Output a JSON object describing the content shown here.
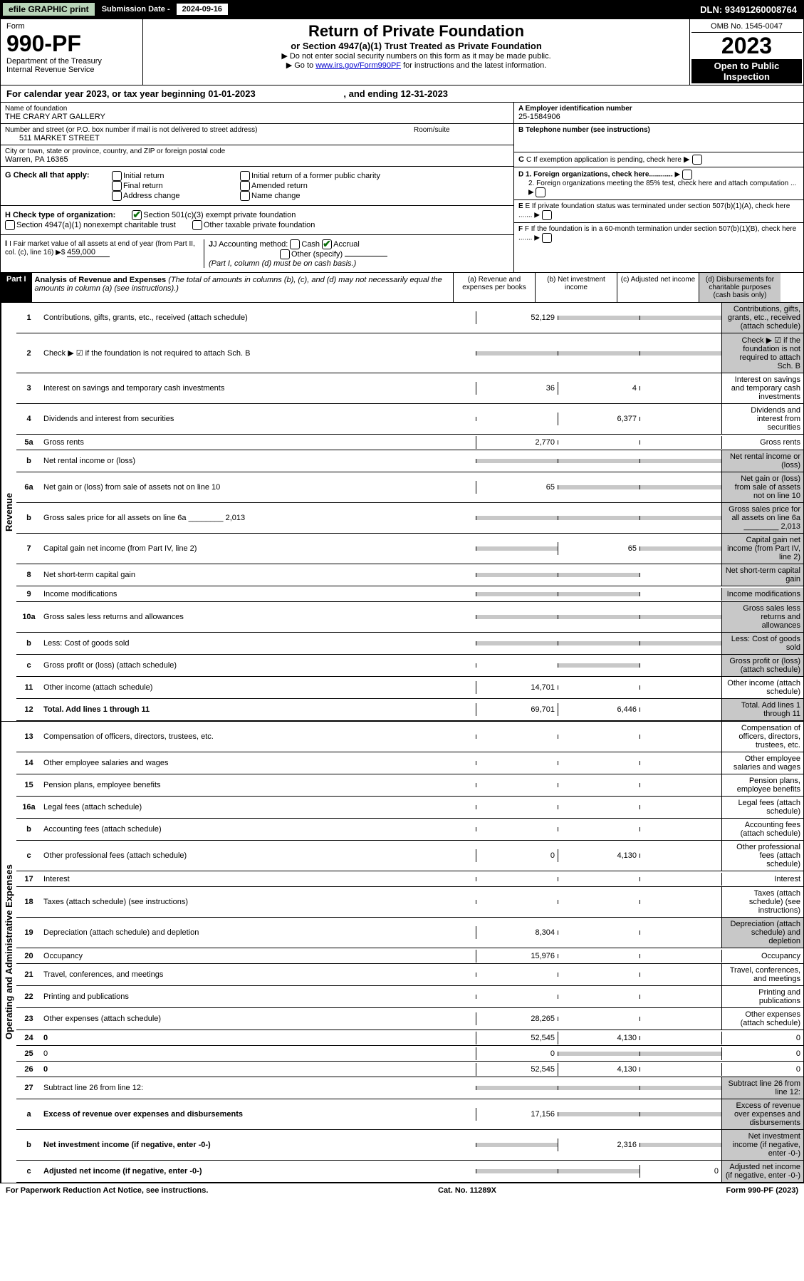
{
  "top": {
    "efile": "efile GRAPHIC print",
    "subDateLabel": "Submission Date - ",
    "subDate": "2024-09-16",
    "dln": "DLN: 93491260008764"
  },
  "header": {
    "formWord": "Form",
    "formNum": "990-PF",
    "dept1": "Department of the Treasury",
    "dept2": "Internal Revenue Service",
    "title": "Return of Private Foundation",
    "subtitle": "or Section 4947(a)(1) Trust Treated as Private Foundation",
    "instr1": "▶ Do not enter social security numbers on this form as it may be made public.",
    "instr2a": "▶ Go to ",
    "instr2link": "www.irs.gov/Form990PF",
    "instr2b": " for instructions and the latest information.",
    "omb": "OMB No. 1545-0047",
    "year": "2023",
    "openPub1": "Open to Public",
    "openPub2": "Inspection"
  },
  "calYear": {
    "a": "For calendar year 2023, or tax year beginning ",
    "b": "01-01-2023",
    "c": " , and ending ",
    "d": "12-31-2023"
  },
  "info": {
    "nameLabel": "Name of foundation",
    "name": "THE CRARY ART GALLERY",
    "addrLabel": "Number and street (or P.O. box number if mail is not delivered to street address)",
    "addr": "511 MARKET STREET",
    "roomLabel": "Room/suite",
    "cityLabel": "City or town, state or province, country, and ZIP or foreign postal code",
    "city": "Warren, PA  16365",
    "einLabel": "A Employer identification number",
    "ein": "25-1584906",
    "phoneLabel": "B Telephone number (see instructions)",
    "cLabel": "C If exemption application is pending, check here",
    "d1": "D 1. Foreign organizations, check here............",
    "d2": "2. Foreign organizations meeting the 85% test, check here and attach computation ...",
    "eLabel": "E If private foundation status was terminated under section 507(b)(1)(A), check here .......",
    "fLabel": "F If the foundation is in a 60-month termination under section 507(b)(1)(B), check here .......",
    "gLabel": "G Check all that apply:",
    "g1": "Initial return",
    "g2": "Final return",
    "g3": "Address change",
    "g4": "Initial return of a former public charity",
    "g5": "Amended return",
    "g6": "Name change",
    "hLabel": "H Check type of organization:",
    "h1": "Section 501(c)(3) exempt private foundation",
    "h2": "Section 4947(a)(1) nonexempt charitable trust",
    "h3": "Other taxable private foundation",
    "iLabel": "I Fair market value of all assets at end of year (from Part II, col. (c), line 16) ▶$ ",
    "iVal": "459,000",
    "jLabel": "J Accounting method:",
    "j1": "Cash",
    "j2": "Accrual",
    "j3": "Other (specify)",
    "jNote": "(Part I, column (d) must be on cash basis.)"
  },
  "part1": {
    "hdr": "Part I",
    "title": "Analysis of Revenue and Expenses ",
    "note": "(The total of amounts in columns (b), (c), and (d) may not necessarily equal the amounts in column (a) (see instructions).)",
    "colA": "(a) Revenue and expenses per books",
    "colB": "(b) Net investment income",
    "colC": "(c) Adjusted net income",
    "colD": "(d) Disbursements for charitable purposes (cash basis only)"
  },
  "sides": {
    "rev": "Revenue",
    "exp": "Operating and Administrative Expenses"
  },
  "rows": [
    {
      "n": "1",
      "d": "Contributions, gifts, grants, etc., received (attach schedule)",
      "a": "52,129",
      "bG": true,
      "cG": true,
      "dG": true
    },
    {
      "n": "2",
      "d": "Check ▶ ☑ if the foundation is not required to attach Sch. B",
      "aG": true,
      "bG": true,
      "cG": true,
      "dG": true,
      "noBorder": true,
      "bold": false
    },
    {
      "n": "3",
      "d": "Interest on savings and temporary cash investments",
      "a": "36",
      "b": "4"
    },
    {
      "n": "4",
      "d": "Dividends and interest from securities",
      "a": "",
      "b": "6,377"
    },
    {
      "n": "5a",
      "d": "Gross rents",
      "a": "2,770"
    },
    {
      "n": "b",
      "d": "Net rental income or (loss)",
      "aG": true,
      "bG": true,
      "cG": true,
      "dG": true,
      "inset": true
    },
    {
      "n": "6a",
      "d": "Net gain or (loss) from sale of assets not on line 10",
      "a": "65",
      "bG": true,
      "cG": true,
      "dG": true
    },
    {
      "n": "b",
      "d": "Gross sales price for all assets on line 6a ________ 2,013",
      "aG": true,
      "bG": true,
      "cG": true,
      "dG": true,
      "inset": true
    },
    {
      "n": "7",
      "d": "Capital gain net income (from Part IV, line 2)",
      "aG": true,
      "b": "65",
      "cG": true,
      "dG": true
    },
    {
      "n": "8",
      "d": "Net short-term capital gain",
      "aG": true,
      "bG": true,
      "dG": true
    },
    {
      "n": "9",
      "d": "Income modifications",
      "aG": true,
      "bG": true,
      "dG": true
    },
    {
      "n": "10a",
      "d": "Gross sales less returns and allowances",
      "aG": true,
      "bG": true,
      "cG": true,
      "dG": true,
      "inset": true
    },
    {
      "n": "b",
      "d": "Less: Cost of goods sold",
      "aG": true,
      "bG": true,
      "cG": true,
      "dG": true,
      "inset": true
    },
    {
      "n": "c",
      "d": "Gross profit or (loss) (attach schedule)",
      "bG": true,
      "dG": true
    },
    {
      "n": "11",
      "d": "Other income (attach schedule)",
      "a": "14,701"
    },
    {
      "n": "12",
      "d": "Total. Add lines 1 through 11",
      "a": "69,701",
      "b": "6,446",
      "bold": true,
      "dG": true
    }
  ],
  "expRows": [
    {
      "n": "13",
      "d": "Compensation of officers, directors, trustees, etc."
    },
    {
      "n": "14",
      "d": "Other employee salaries and wages"
    },
    {
      "n": "15",
      "d": "Pension plans, employee benefits"
    },
    {
      "n": "16a",
      "d": "Legal fees (attach schedule)"
    },
    {
      "n": "b",
      "d": "Accounting fees (attach schedule)"
    },
    {
      "n": "c",
      "d": "Other professional fees (attach schedule)",
      "a": "0",
      "b": "4,130"
    },
    {
      "n": "17",
      "d": "Interest"
    },
    {
      "n": "18",
      "d": "Taxes (attach schedule) (see instructions)"
    },
    {
      "n": "19",
      "d": "Depreciation (attach schedule) and depletion",
      "a": "8,304",
      "dG": true
    },
    {
      "n": "20",
      "d": "Occupancy",
      "a": "15,976"
    },
    {
      "n": "21",
      "d": "Travel, conferences, and meetings"
    },
    {
      "n": "22",
      "d": "Printing and publications"
    },
    {
      "n": "23",
      "d": "Other expenses (attach schedule)",
      "a": "28,265"
    },
    {
      "n": "24",
      "d": "0",
      "a": "52,545",
      "b": "4,130",
      "bold": true
    },
    {
      "n": "25",
      "d": "0",
      "a": "0",
      "bG": true,
      "cG": true
    },
    {
      "n": "26",
      "d": "0",
      "a": "52,545",
      "b": "4,130",
      "bold": true
    },
    {
      "n": "27",
      "d": "Subtract line 26 from line 12:",
      "aG": true,
      "bG": true,
      "cG": true,
      "dG": true
    },
    {
      "n": "a",
      "d": "Excess of revenue over expenses and disbursements",
      "a": "17,156",
      "bG": true,
      "cG": true,
      "dG": true,
      "bold": true
    },
    {
      "n": "b",
      "d": "Net investment income (if negative, enter -0-)",
      "aG": true,
      "b": "2,316",
      "cG": true,
      "dG": true,
      "bold": true
    },
    {
      "n": "c",
      "d": "Adjusted net income (if negative, enter -0-)",
      "aG": true,
      "bG": true,
      "c": "0",
      "dG": true,
      "bold": true
    }
  ],
  "footer": {
    "left": "For Paperwork Reduction Act Notice, see instructions.",
    "mid": "Cat. No. 11289X",
    "right": "Form 990-PF (2023)"
  }
}
